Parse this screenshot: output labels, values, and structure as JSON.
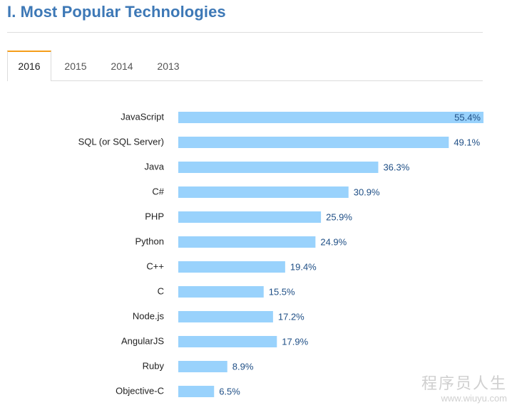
{
  "page": {
    "title": "I. Most Popular Technologies"
  },
  "tabs": [
    {
      "label": "2016",
      "active": true
    },
    {
      "label": "2015",
      "active": false
    },
    {
      "label": "2014",
      "active": false
    },
    {
      "label": "2013",
      "active": false
    }
  ],
  "colors": {
    "title": "#3d78b6",
    "bar": "#99d2fc",
    "value_text": "#1f4f86",
    "tab_accent": "#f59e1a"
  },
  "chart_data": {
    "type": "bar",
    "orientation": "horizontal",
    "title": "",
    "xlabel": "",
    "ylabel": "",
    "xlim": [
      0,
      55.4
    ],
    "value_suffix": "%",
    "categories": [
      "JavaScript",
      "SQL (or SQL Server)",
      "Java",
      "C#",
      "PHP",
      "Python",
      "C++",
      "C",
      "Node.js",
      "AngularJS",
      "Ruby",
      "Objective-C"
    ],
    "values": [
      55.4,
      49.1,
      36.3,
      30.9,
      25.9,
      24.9,
      19.4,
      15.5,
      17.2,
      17.9,
      8.9,
      6.5
    ],
    "labels": [
      "55.4%",
      "49.1%",
      "36.3%",
      "30.9%",
      "25.9%",
      "24.9%",
      "19.4%",
      "15.5%",
      "17.2%",
      "17.9%",
      "8.9%",
      "6.5%"
    ]
  },
  "watermark": {
    "line1": "程序员人生",
    "line2": "www.wiuyu.com"
  }
}
